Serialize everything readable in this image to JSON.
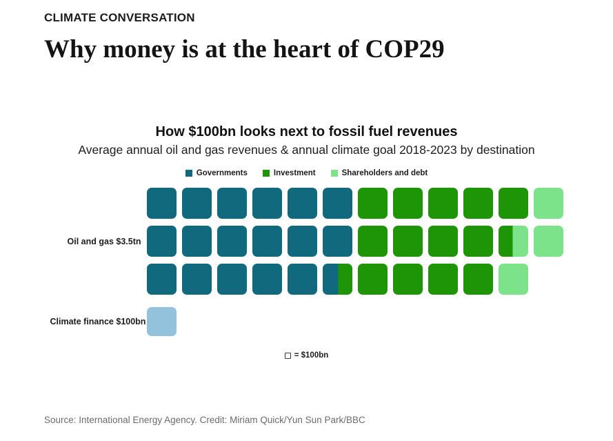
{
  "page": {
    "kicker": "CLIMATE CONVERSATION",
    "headline": "Why money is at the heart of COP29",
    "source_line": "Source: International Energy Agency. Credit: Miriam Quick/Yun Sun Park/BBC"
  },
  "chart": {
    "title": "How $100bn looks next to fossil fuel revenues",
    "subtitle": "Average annual oil and gas revenues & annual climate goal 2018-2023 by destination",
    "colors": {
      "governments": "#11697d",
      "investment": "#1e9506",
      "shareholders": "#7ce38b",
      "climate_finance": "#92c2dc"
    },
    "legend": [
      {
        "label": "Governments",
        "color_key": "governments"
      },
      {
        "label": "Investment",
        "color_key": "investment"
      },
      {
        "label": "Shareholders and debt",
        "color_key": "shareholders"
      }
    ],
    "waffle_rows": [
      {
        "label": "",
        "cells": [
          "governments",
          "governments",
          "governments",
          "governments",
          "governments",
          "governments",
          "investment",
          "investment",
          "investment",
          "investment",
          "investment",
          "shareholders"
        ]
      },
      {
        "label": "Oil and gas $3.5tn",
        "cells": [
          "governments",
          "governments",
          "governments",
          "governments",
          "governments",
          "governments",
          "investment",
          "investment",
          "investment",
          "investment",
          "investment/shareholders@48",
          "shareholders"
        ]
      },
      {
        "label": "",
        "cells": [
          "governments",
          "governments",
          "governments",
          "governments",
          "governments",
          "governments/investment@52",
          "investment",
          "investment",
          "investment",
          "investment",
          "shareholders"
        ]
      }
    ],
    "climate_row": {
      "label": "Climate finance $100bn",
      "color_key": "climate_finance"
    },
    "unit_note": "= $100bn"
  },
  "chart_data": {
    "type": "bar",
    "variant": "waffle unit chart, 1 square = $100bn",
    "title": "How $100bn looks next to fossil fuel revenues",
    "subtitle": "Average annual oil and gas revenues & annual climate goal 2018-2023 by destination",
    "unit_value_bn": 100,
    "categories": [
      "Oil and gas",
      "Climate finance"
    ],
    "series": [
      {
        "name": "Governments",
        "values_bn": [
          1750,
          0
        ],
        "color": "#11697d"
      },
      {
        "name": "Investment",
        "values_bn": [
          1400,
          0
        ],
        "color": "#1e9506"
      },
      {
        "name": "Shareholders and debt",
        "values_bn": [
          350,
          0
        ],
        "color": "#7ce38b"
      },
      {
        "name": "Climate finance annual goal",
        "values_bn": [
          0,
          100
        ],
        "color": "#92c2dc"
      }
    ],
    "totals": {
      "Oil and gas": "$3.5tn",
      "Climate finance": "$100bn"
    },
    "legend_position": "top-center",
    "grid": false,
    "annotations": [
      "Oil and gas $3.5tn",
      "Climate finance $100bn",
      "□ = $100bn"
    ]
  }
}
